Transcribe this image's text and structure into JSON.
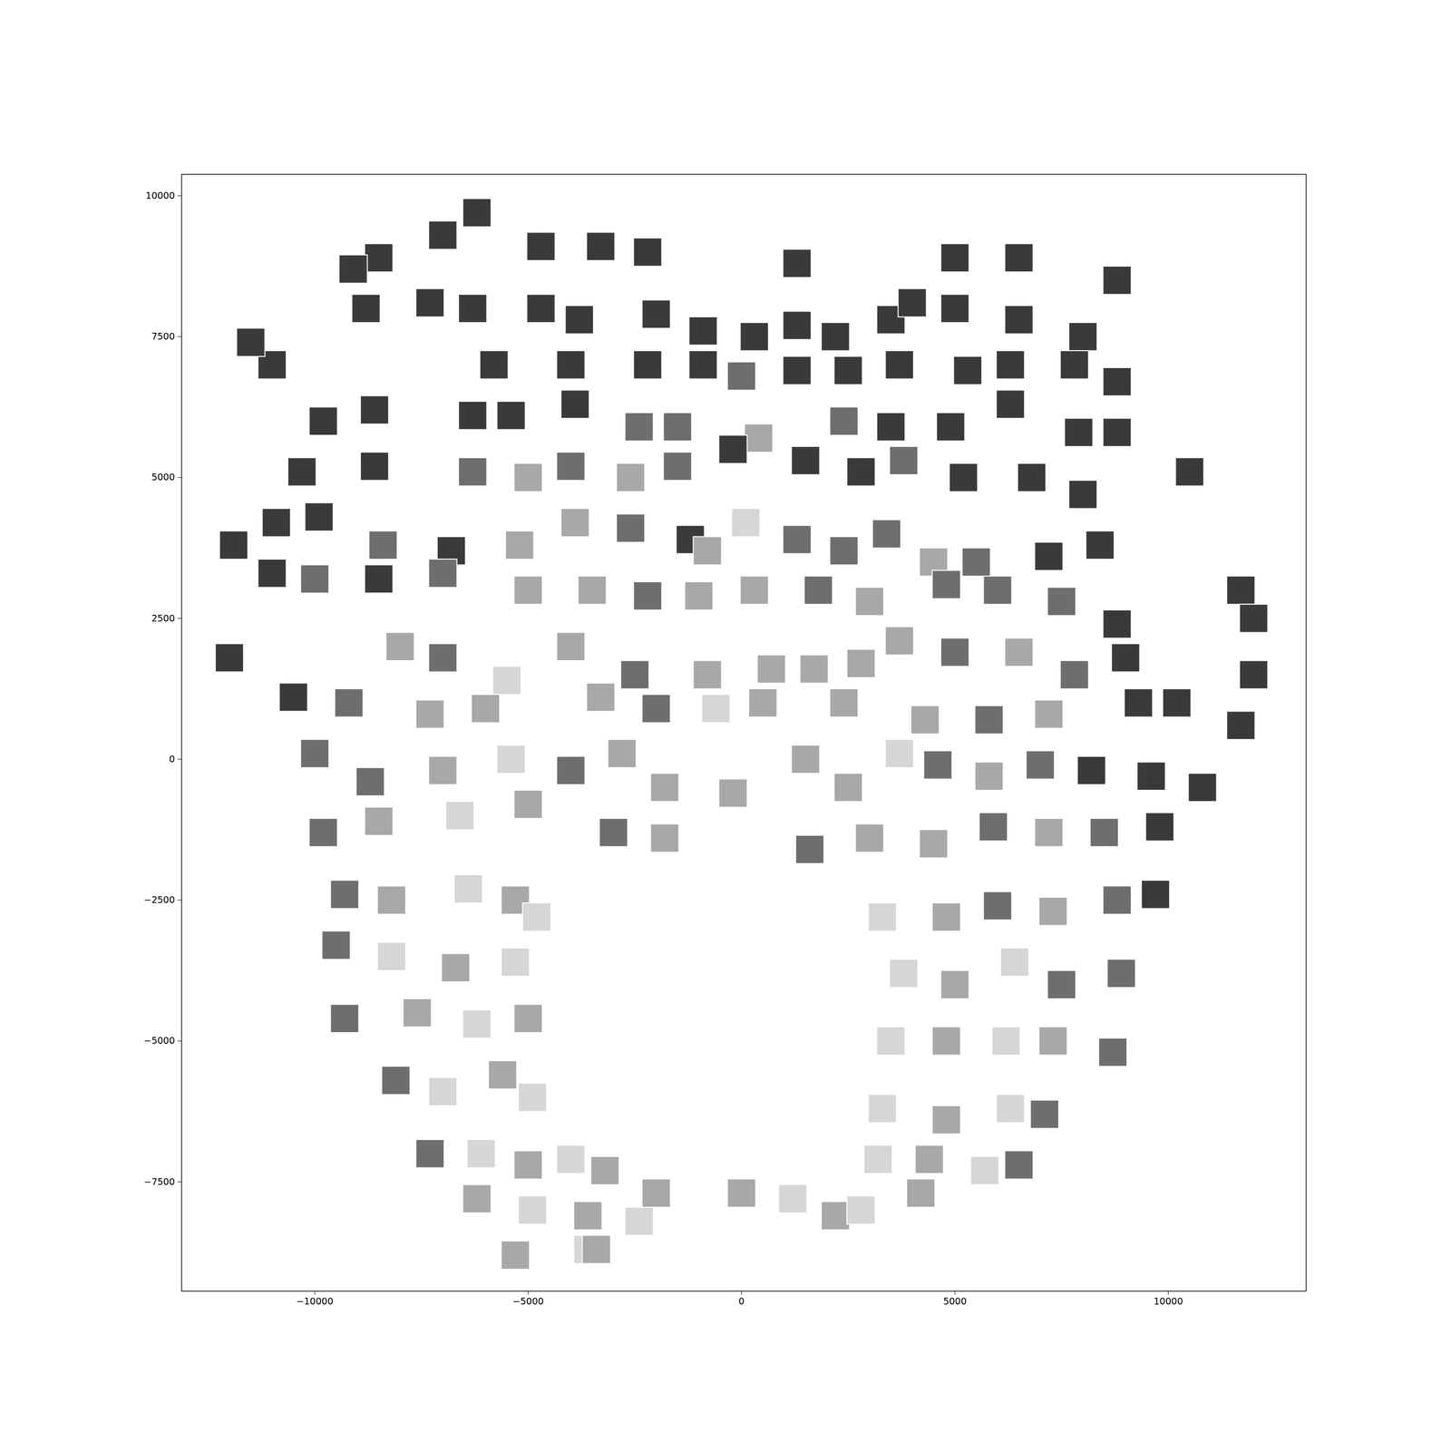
{
  "chart_data": {
    "type": "scatter",
    "marker": "square",
    "xlim": [
      -13120,
      13230
    ],
    "ylim": [
      -9440,
      10380
    ],
    "xticks": [
      {
        "value": -10000,
        "label": "−10000"
      },
      {
        "value": -5000,
        "label": "−5000"
      },
      0,
      5000,
      10000
    ],
    "yticks": [
      {
        "value": -7500,
        "label": "−7500"
      },
      {
        "value": -5000,
        "label": "−5000"
      },
      {
        "value": -2500,
        "label": "−2500"
      },
      0,
      2500,
      5000,
      7500,
      10000
    ],
    "x": [
      -6200,
      -7000,
      -8500,
      -9100,
      -4700,
      -3300,
      -2200,
      1300,
      5000,
      6500,
      8800,
      -8800,
      -7300,
      -6300,
      -4700,
      -3800,
      -2000,
      -900,
      300,
      1300,
      2200,
      3500,
      4000,
      5000,
      6500,
      8000,
      -11000,
      -11500,
      -5800,
      -4000,
      -2200,
      -900,
      0,
      1300,
      2500,
      3700,
      5300,
      6300,
      7800,
      8800,
      -9800,
      -8600,
      -6300,
      -5400,
      -3900,
      -2400,
      -1500,
      400,
      2400,
      3500,
      4900,
      6300,
      7900,
      8800,
      -10300,
      -8600,
      -6300,
      -5000,
      -4000,
      -2600,
      -1500,
      -200,
      1500,
      2800,
      3800,
      5200,
      6800,
      8000,
      10500,
      -11900,
      -10900,
      -9900,
      -8400,
      -6800,
      -5200,
      -3900,
      -2600,
      -1200,
      -800,
      100,
      1300,
      2400,
      3400,
      4500,
      5500,
      7200,
      8400,
      -11000,
      -10000,
      -8500,
      -7000,
      -5000,
      -3500,
      -2200,
      -1000,
      300,
      1800,
      3000,
      4800,
      6000,
      7500,
      8800,
      11700,
      12000,
      -12000,
      -8000,
      -7000,
      -5500,
      -4000,
      -2500,
      -800,
      700,
      1700,
      2800,
      3700,
      5000,
      6500,
      7800,
      9000,
      12000,
      -10500,
      -9200,
      -7300,
      -6000,
      -3300,
      -2000,
      -600,
      500,
      2400,
      4300,
      5800,
      7200,
      9300,
      10200,
      11700,
      -10000,
      -8700,
      -7000,
      -5400,
      -4000,
      -2800,
      -1800,
      -200,
      1500,
      2500,
      3700,
      4600,
      5800,
      7000,
      8200,
      9600,
      10800,
      -9800,
      -8500,
      -6600,
      -5000,
      -3000,
      -1800,
      1600,
      3000,
      4500,
      5900,
      7200,
      8500,
      9800,
      -9300,
      -8200,
      -6400,
      -5300,
      -4800,
      3300,
      4800,
      6000,
      7300,
      8800,
      9700,
      -9500,
      -8200,
      -6700,
      -5300,
      3800,
      5000,
      6400,
      7500,
      8900,
      -9300,
      -7600,
      -6200,
      -5000,
      3500,
      4800,
      6200,
      7300,
      8700,
      -8100,
      -7000,
      -5600,
      -4900,
      3300,
      4800,
      6300,
      7100,
      -7300,
      -6100,
      -5000,
      -4000,
      -3200,
      3200,
      4400,
      5700,
      6500,
      -6200,
      -4900,
      -3600,
      -2400,
      -2000,
      0,
      1200,
      2200,
      2800,
      4200,
      -5300,
      -3600,
      -3400
    ],
    "values": [
      9700,
      9300,
      8900,
      8700,
      9100,
      9100,
      9000,
      8800,
      8900,
      8900,
      8500,
      8000,
      8100,
      8000,
      8000,
      7800,
      7900,
      7600,
      7500,
      7700,
      7500,
      7800,
      8100,
      8000,
      7800,
      7500,
      7000,
      7400,
      7000,
      7000,
      7000,
      7000,
      6800,
      6900,
      6900,
      7000,
      6900,
      7000,
      7000,
      6700,
      6000,
      6200,
      6100,
      6100,
      6300,
      5900,
      5900,
      5700,
      6000,
      5900,
      5900,
      6300,
      5800,
      5800,
      5100,
      5200,
      5100,
      5000,
      5200,
      5000,
      5200,
      5500,
      5300,
      5100,
      5300,
      5000,
      5000,
      4700,
      5100,
      3800,
      4200,
      4300,
      3800,
      3700,
      3800,
      4200,
      4100,
      3900,
      3700,
      4200,
      3900,
      3700,
      4000,
      3500,
      3500,
      3600,
      3800,
      3300,
      3200,
      3200,
      3300,
      3000,
      3000,
      2900,
      2900,
      3000,
      3000,
      2800,
      3100,
      3000,
      2800,
      2400,
      3000,
      2500,
      1800,
      2000,
      1800,
      1400,
      2000,
      1500,
      1500,
      1600,
      1600,
      1700,
      2100,
      1900,
      1900,
      1500,
      1800,
      1500,
      1100,
      1000,
      800,
      900,
      1100,
      900,
      900,
      1000,
      1000,
      700,
      700,
      800,
      1000,
      1000,
      600,
      100,
      -400,
      -200,
      0,
      -200,
      100,
      -500,
      -600,
      0,
      -500,
      100,
      -100,
      -300,
      -100,
      -200,
      -300,
      -500,
      -1300,
      -1100,
      -1000,
      -800,
      -1300,
      -1400,
      -1600,
      -1400,
      -1500,
      -1200,
      -1300,
      -1300,
      -1200,
      -2400,
      -2500,
      -2300,
      -2500,
      -2800,
      -2800,
      -2800,
      -2600,
      -2700,
      -2500,
      -2400,
      -3300,
      -3500,
      -3700,
      -3600,
      -3800,
      -4000,
      -3600,
      -4000,
      -3800,
      -4600,
      -4500,
      -4700,
      -4600,
      -5000,
      -5000,
      -5000,
      -5000,
      -5200,
      -5700,
      -5900,
      -5600,
      -6000,
      -6200,
      -6400,
      -6200,
      -6300,
      -7000,
      -7000,
      -7200,
      -7100,
      -7300,
      -7100,
      -7100,
      -7300,
      -7200,
      -7800,
      -8000,
      -8100,
      -8200,
      -7700,
      -7700,
      -7800,
      -8100,
      -8000,
      -7700,
      -8800,
      -8700,
      -8700
    ],
    "colors": [
      "#3a3a3a",
      "#3a3a3a",
      "#3a3a3a",
      "#3a3a3a",
      "#3a3a3a",
      "#3a3a3a",
      "#3a3a3a",
      "#3a3a3a",
      "#3a3a3a",
      "#3a3a3a",
      "#3a3a3a",
      "#3a3a3a",
      "#3a3a3a",
      "#3a3a3a",
      "#3a3a3a",
      "#3a3a3a",
      "#3a3a3a",
      "#3a3a3a",
      "#3a3a3a",
      "#3a3a3a",
      "#3a3a3a",
      "#3a3a3a",
      "#3a3a3a",
      "#3a3a3a",
      "#3a3a3a",
      "#3a3a3a",
      "#3a3a3a",
      "#3a3a3a",
      "#3a3a3a",
      "#3a3a3a",
      "#3a3a3a",
      "#3a3a3a",
      "#6e6e6e",
      "#3a3a3a",
      "#3a3a3a",
      "#3a3a3a",
      "#3a3a3a",
      "#3a3a3a",
      "#3a3a3a",
      "#3a3a3a",
      "#3a3a3a",
      "#3a3a3a",
      "#3a3a3a",
      "#3a3a3a",
      "#3a3a3a",
      "#6e6e6e",
      "#6e6e6e",
      "#a8a8a8",
      "#6e6e6e",
      "#3a3a3a",
      "#3a3a3a",
      "#3a3a3a",
      "#3a3a3a",
      "#3a3a3a",
      "#3a3a3a",
      "#3a3a3a",
      "#6e6e6e",
      "#a8a8a8",
      "#6e6e6e",
      "#a8a8a8",
      "#6e6e6e",
      "#3a3a3a",
      "#3a3a3a",
      "#3a3a3a",
      "#6e6e6e",
      "#3a3a3a",
      "#3a3a3a",
      "#3a3a3a",
      "#3a3a3a",
      "#3a3a3a",
      "#3a3a3a",
      "#3a3a3a",
      "#6e6e6e",
      "#3a3a3a",
      "#a8a8a8",
      "#a8a8a8",
      "#6e6e6e",
      "#3a3a3a",
      "#a8a8a8",
      "#d6d6d6",
      "#6e6e6e",
      "#6e6e6e",
      "#6e6e6e",
      "#a8a8a8",
      "#6e6e6e",
      "#3a3a3a",
      "#3a3a3a",
      "#3a3a3a",
      "#6e6e6e",
      "#3a3a3a",
      "#6e6e6e",
      "#a8a8a8",
      "#a8a8a8",
      "#6e6e6e",
      "#a8a8a8",
      "#a8a8a8",
      "#6e6e6e",
      "#a8a8a8",
      "#6e6e6e",
      "#6e6e6e",
      "#6e6e6e",
      "#3a3a3a",
      "#3a3a3a",
      "#3a3a3a",
      "#3a3a3a",
      "#a8a8a8",
      "#6e6e6e",
      "#d6d6d6",
      "#a8a8a8",
      "#6e6e6e",
      "#a8a8a8",
      "#a8a8a8",
      "#a8a8a8",
      "#a8a8a8",
      "#a8a8a8",
      "#6e6e6e",
      "#a8a8a8",
      "#6e6e6e",
      "#3a3a3a",
      "#3a3a3a",
      "#3a3a3a",
      "#6e6e6e",
      "#a8a8a8",
      "#a8a8a8",
      "#a8a8a8",
      "#6e6e6e",
      "#d6d6d6",
      "#a8a8a8",
      "#a8a8a8",
      "#a8a8a8",
      "#6e6e6e",
      "#a8a8a8",
      "#3a3a3a",
      "#3a3a3a",
      "#3a3a3a",
      "#6e6e6e",
      "#6e6e6e",
      "#a8a8a8",
      "#d6d6d6",
      "#6e6e6e",
      "#a8a8a8",
      "#a8a8a8",
      "#a8a8a8",
      "#a8a8a8",
      "#a8a8a8",
      "#d6d6d6",
      "#6e6e6e",
      "#a8a8a8",
      "#6e6e6e",
      "#3a3a3a",
      "#3a3a3a",
      "#3a3a3a",
      "#6e6e6e",
      "#a8a8a8",
      "#d6d6d6",
      "#a8a8a8",
      "#6e6e6e",
      "#a8a8a8",
      "#6e6e6e",
      "#a8a8a8",
      "#a8a8a8",
      "#6e6e6e",
      "#a8a8a8",
      "#6e6e6e",
      "#3a3a3a",
      "#6e6e6e",
      "#a8a8a8",
      "#d6d6d6",
      "#a8a8a8",
      "#d6d6d6",
      "#d6d6d6",
      "#a8a8a8",
      "#6e6e6e",
      "#a8a8a8",
      "#6e6e6e",
      "#3a3a3a",
      "#6e6e6e",
      "#d6d6d6",
      "#a8a8a8",
      "#d6d6d6",
      "#d6d6d6",
      "#a8a8a8",
      "#d6d6d6",
      "#6e6e6e",
      "#6e6e6e",
      "#6e6e6e",
      "#a8a8a8",
      "#d6d6d6",
      "#a8a8a8",
      "#d6d6d6",
      "#a8a8a8",
      "#d6d6d6",
      "#a8a8a8",
      "#6e6e6e",
      "#6e6e6e",
      "#d6d6d6",
      "#a8a8a8",
      "#d6d6d6",
      "#d6d6d6",
      "#a8a8a8",
      "#d6d6d6",
      "#6e6e6e",
      "#6e6e6e",
      "#d6d6d6",
      "#a8a8a8",
      "#d6d6d6",
      "#a8a8a8",
      "#d6d6d6",
      "#a8a8a8",
      "#d6d6d6",
      "#6e6e6e",
      "#a8a8a8",
      "#d6d6d6",
      "#a8a8a8",
      "#d6d6d6",
      "#a8a8a8",
      "#a8a8a8",
      "#d6d6d6",
      "#a8a8a8",
      "#d6d6d6",
      "#a8a8a8",
      "#a8a8a8",
      "#d6d6d6",
      "#a8a8a8"
    ]
  }
}
